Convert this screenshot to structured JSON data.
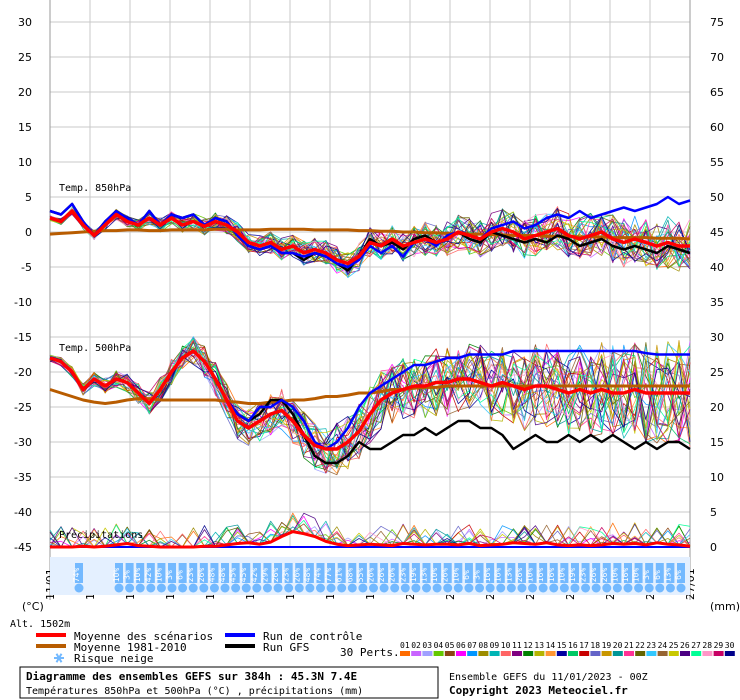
{
  "chart_data": {
    "type": "line",
    "left_axis": {
      "unit": "(°C)",
      "ticks": [
        30,
        25,
        20,
        15,
        10,
        5,
        0,
        -5,
        -10,
        -15,
        -20,
        -25,
        -30,
        -35,
        -40,
        -45
      ]
    },
    "right_axis": {
      "unit": "(mm)",
      "ticks": [
        75,
        70,
        65,
        60,
        55,
        50,
        45,
        40,
        35,
        30,
        25,
        20,
        15,
        10,
        5,
        0
      ]
    },
    "x_labels": [
      "11/01",
      "12/01",
      "13/01",
      "14/01",
      "15/01",
      "16/01",
      "17/01",
      "18/01",
      "19/01",
      "20/01",
      "21/01",
      "22/01",
      "23/01",
      "24/01",
      "25/01",
      "26/01",
      "27/01"
    ],
    "panel_labels": {
      "t850": "Temp. 850hPa",
      "t500": "Temp. 500hPa",
      "precip": "Précipitations"
    },
    "altitude": "Alt. 1502m",
    "snow_risk": {
      "label_first": "74%",
      "values": [
        "10%",
        "3%",
        "10%",
        "42%",
        "10%",
        "3%",
        "6%",
        "23%",
        "26%",
        "48%",
        "48%",
        "45%",
        "45%",
        "42%",
        "29%",
        "26%",
        "23%",
        "26%",
        "48%",
        "74%",
        "77%",
        "61%",
        "68%",
        "55%",
        "26%",
        "26%",
        "26%",
        "23%",
        "19%",
        "13%",
        "10%",
        "26%",
        "10%",
        "6%",
        "3%",
        "16%",
        "16%",
        "13%",
        "26%",
        "10%",
        "16%",
        "16%",
        "10%",
        "19%",
        "23%",
        "26%",
        "26%",
        "10%",
        "16%",
        "10%",
        "3%",
        "6%",
        "13%",
        "6%"
      ]
    },
    "t850_mean": [
      2,
      1.5,
      3,
      1,
      -0.5,
      1,
      2.5,
      1.5,
      1,
      2,
      1,
      2,
      1,
      1.5,
      0.8,
      1.5,
      1,
      0,
      -1.5,
      -2,
      -1.5,
      -2.5,
      -2,
      -3,
      -2.5,
      -3,
      -4,
      -4.5,
      -3.5,
      -1.5,
      -2,
      -1,
      -2,
      -1.5,
      -1,
      -1.5,
      -1,
      0,
      -0.5,
      -1,
      0,
      0.5,
      0,
      -1,
      -0.5,
      0,
      0.5,
      -0.5,
      -1,
      -0.5,
      0,
      -1,
      -1.5,
      -1,
      -1.5,
      -2,
      -1.5,
      -2,
      -2
    ],
    "t850_climo": [
      -0.3,
      -0.2,
      -0.1,
      0,
      0.1,
      0.2,
      0.2,
      0.3,
      0.3,
      0.2,
      0.2,
      0.3,
      0.3,
      0.3,
      0.3,
      0.4,
      0.4,
      0.3,
      0.3,
      0.3,
      0.4,
      0.4,
      0.4,
      0.4,
      0.3,
      0.3,
      0.3,
      0.3,
      0.2,
      0.2,
      0.1,
      0.1,
      0,
      0,
      -0.1,
      -0.1,
      -0.2,
      -0.2,
      -0.3,
      -0.3,
      -0.4,
      -0.4,
      -0.5,
      -0.5,
      -0.5,
      -0.6,
      -0.6,
      -0.6,
      -0.7,
      -0.7,
      -0.7,
      -0.8,
      -0.8,
      -0.8,
      -0.8,
      -0.9,
      -0.9,
      -0.9,
      -1
    ],
    "t850_control": [
      3,
      2.5,
      4,
      1.5,
      -0.5,
      1.5,
      3,
      2,
      1,
      3,
      1,
      2.5,
      2,
      2.5,
      1,
      2,
      1.5,
      -0.5,
      -2,
      -2.5,
      -2,
      -3,
      -3,
      -3.5,
      -3,
      -3.5,
      -4.5,
      -5,
      -4,
      -2,
      -3,
      -2,
      -3.5,
      -1.5,
      -1,
      -2,
      -0.5,
      0,
      -0.5,
      -1,
      0.5,
      1,
      1.5,
      0.5,
      1,
      2,
      2.5,
      2,
      3,
      2,
      2.5,
      3,
      3.5,
      3,
      3.5,
      4,
      5,
      4,
      4.5
    ],
    "t850_gfs": [
      3,
      2.5,
      4,
      1.5,
      -0.5,
      1.5,
      3,
      2,
      1,
      3,
      1,
      2.5,
      2,
      2.5,
      1,
      2,
      1.5,
      -0.5,
      -2,
      -2.5,
      -2,
      -3,
      -3,
      -4,
      -3,
      -3.5,
      -4.5,
      -5.5,
      -3.5,
      -1,
      -2,
      -1.5,
      -2.5,
      -1,
      -0.5,
      -1.5,
      -1,
      0,
      -1,
      -1.5,
      0,
      -0.5,
      -1,
      -1.5,
      -1,
      -1.5,
      -0.5,
      -1,
      -2,
      -1.5,
      -1,
      -2,
      -2.5,
      -2,
      -2.5,
      -3,
      -2,
      -2.5,
      -3
    ],
    "t500_mean": [
      -18,
      -18.5,
      -20,
      -22.5,
      -21,
      -22,
      -21,
      -21.5,
      -23,
      -24.5,
      -22.5,
      -20,
      -18,
      -17,
      -18.5,
      -21,
      -24,
      -27,
      -28,
      -27,
      -26,
      -25.5,
      -27,
      -29,
      -30.5,
      -31,
      -31,
      -30,
      -28.5,
      -26,
      -24,
      -23,
      -22.5,
      -22,
      -22,
      -21.5,
      -21.5,
      -21,
      -21,
      -21.5,
      -22,
      -21.5,
      -22,
      -22.5,
      -22,
      -22,
      -22.5,
      -23,
      -22.5,
      -23,
      -22.5,
      -23,
      -23,
      -22.5,
      -23,
      -23,
      -23,
      -23,
      -23
    ],
    "t500_climo": [
      -22.5,
      -23,
      -23.5,
      -24,
      -24.3,
      -24.5,
      -24.3,
      -24,
      -23.8,
      -23.8,
      -24,
      -24,
      -24,
      -24,
      -24,
      -24,
      -24.2,
      -24.3,
      -24.5,
      -24.5,
      -24.3,
      -24.2,
      -24,
      -24,
      -23.8,
      -23.5,
      -23.5,
      -23.3,
      -23,
      -23,
      -22.8,
      -22.5,
      -22.5,
      -22.3,
      -22.2,
      -22.2,
      -22,
      -22,
      -22,
      -22,
      -22,
      -22,
      -22,
      -22,
      -22,
      -22,
      -22,
      -22,
      -22,
      -22,
      -22,
      -22,
      -22,
      -22,
      -22,
      -22,
      -22,
      -22,
      -22
    ],
    "t500_control": [
      -18,
      -18.5,
      -20,
      -22.5,
      -21,
      -22,
      -21,
      -21.5,
      -23,
      -24.5,
      -22.5,
      -20,
      -18,
      -17,
      -18.5,
      -21,
      -24,
      -26,
      -27,
      -25,
      -25,
      -24,
      -25,
      -27,
      -30,
      -31,
      -30,
      -28,
      -25,
      -23,
      -22,
      -21,
      -20,
      -19,
      -19,
      -18.5,
      -18,
      -18,
      -17.5,
      -17.5,
      -17.5,
      -17.5,
      -17,
      -17,
      -17,
      -17,
      -17,
      -17,
      -17,
      -17,
      -17,
      -17,
      -17,
      -17,
      -17.3,
      -17.5,
      -17.5,
      -17.5,
      -17.5
    ],
    "t500_gfs": [
      -18,
      -18.5,
      -20,
      -22.5,
      -21,
      -22,
      -21,
      -21.5,
      -23,
      -24.5,
      -22.5,
      -20,
      -18,
      -17,
      -18.5,
      -21,
      -24,
      -26,
      -27,
      -26,
      -24,
      -24,
      -26,
      -29,
      -32,
      -33,
      -33,
      -32,
      -30,
      -31,
      -31,
      -30,
      -29,
      -29,
      -28,
      -29,
      -28,
      -27,
      -27,
      -28,
      -28,
      -29,
      -31,
      -30,
      -29,
      -30,
      -30,
      -29,
      -30,
      -29,
      -30,
      -29,
      -30,
      -31,
      -30,
      -31,
      -30,
      -30,
      -31
    ],
    "precip_mean": [
      0,
      0,
      0,
      0.1,
      0,
      0.1,
      0.3,
      0.5,
      0.2,
      0.1,
      0,
      0,
      0,
      0,
      0.1,
      0.1,
      0.3,
      0.5,
      0.6,
      0.4,
      0.7,
      1.5,
      2.2,
      1.9,
      1.5,
      0.8,
      0.4,
      0.2,
      0.3,
      0.4,
      0.3,
      0.2,
      0.5,
      0.4,
      0.3,
      0.4,
      0.4,
      0.3,
      0.5,
      0.2,
      0.3,
      0.4,
      0.6,
      0.5,
      0.4,
      0.6,
      0.3,
      0.2,
      0.3,
      0.2,
      0.3,
      0.5,
      0.4,
      0.5,
      0.3,
      0.6,
      0.4,
      0.3,
      0.1
    ],
    "legend": {
      "mean": "Moyenne des scénarios",
      "climo": "Moyenne 1981-2010",
      "snow": "Risque neige",
      "control": "Run de contrôle",
      "gfs": "Run GFS",
      "perts_label": "30 Perts.",
      "pert_ids": [
        "01",
        "02",
        "03",
        "04",
        "05",
        "06",
        "07",
        "08",
        "09",
        "10",
        "11",
        "12",
        "13",
        "14",
        "15",
        "16",
        "17",
        "18",
        "19",
        "20",
        "21",
        "22",
        "23",
        "24",
        "25",
        "26",
        "27",
        "28",
        "29",
        "30"
      ]
    },
    "colors": {
      "mean": "#ff0000",
      "climo": "#b85c00",
      "control": "#0000ff",
      "gfs": "#000000",
      "snow": "#73b9ff",
      "grid": "#c8c8c8",
      "perts": [
        "#ff6c00",
        "#c864ff",
        "#a0a0ff",
        "#64c800",
        "#8b4513",
        "#ff00ff",
        "#0096ff",
        "#9c8c00",
        "#00b4b4",
        "#ff6464",
        "#800080",
        "#008000",
        "#b4b400",
        "#ff9632",
        "#0000a0",
        "#00c864",
        "#c80000",
        "#6464c8",
        "#c89600",
        "#009696",
        "#ff3296",
        "#646400",
        "#32c8ff",
        "#966432",
        "#c8c800",
        "#4b0082",
        "#00ff96",
        "#ff96c8",
        "#c80064",
        "#00008b"
      ]
    },
    "footer": {
      "title": "Diagramme des ensembles GEFS sur 384h : 45.3N 7.4E",
      "subtitle": "Températures 850hPa et 500hPa (°C) , précipitations (mm)",
      "run": "Ensemble GEFS du 11/01/2023 - 00Z",
      "copyright": "Copyright 2023 Meteociel.fr"
    }
  }
}
